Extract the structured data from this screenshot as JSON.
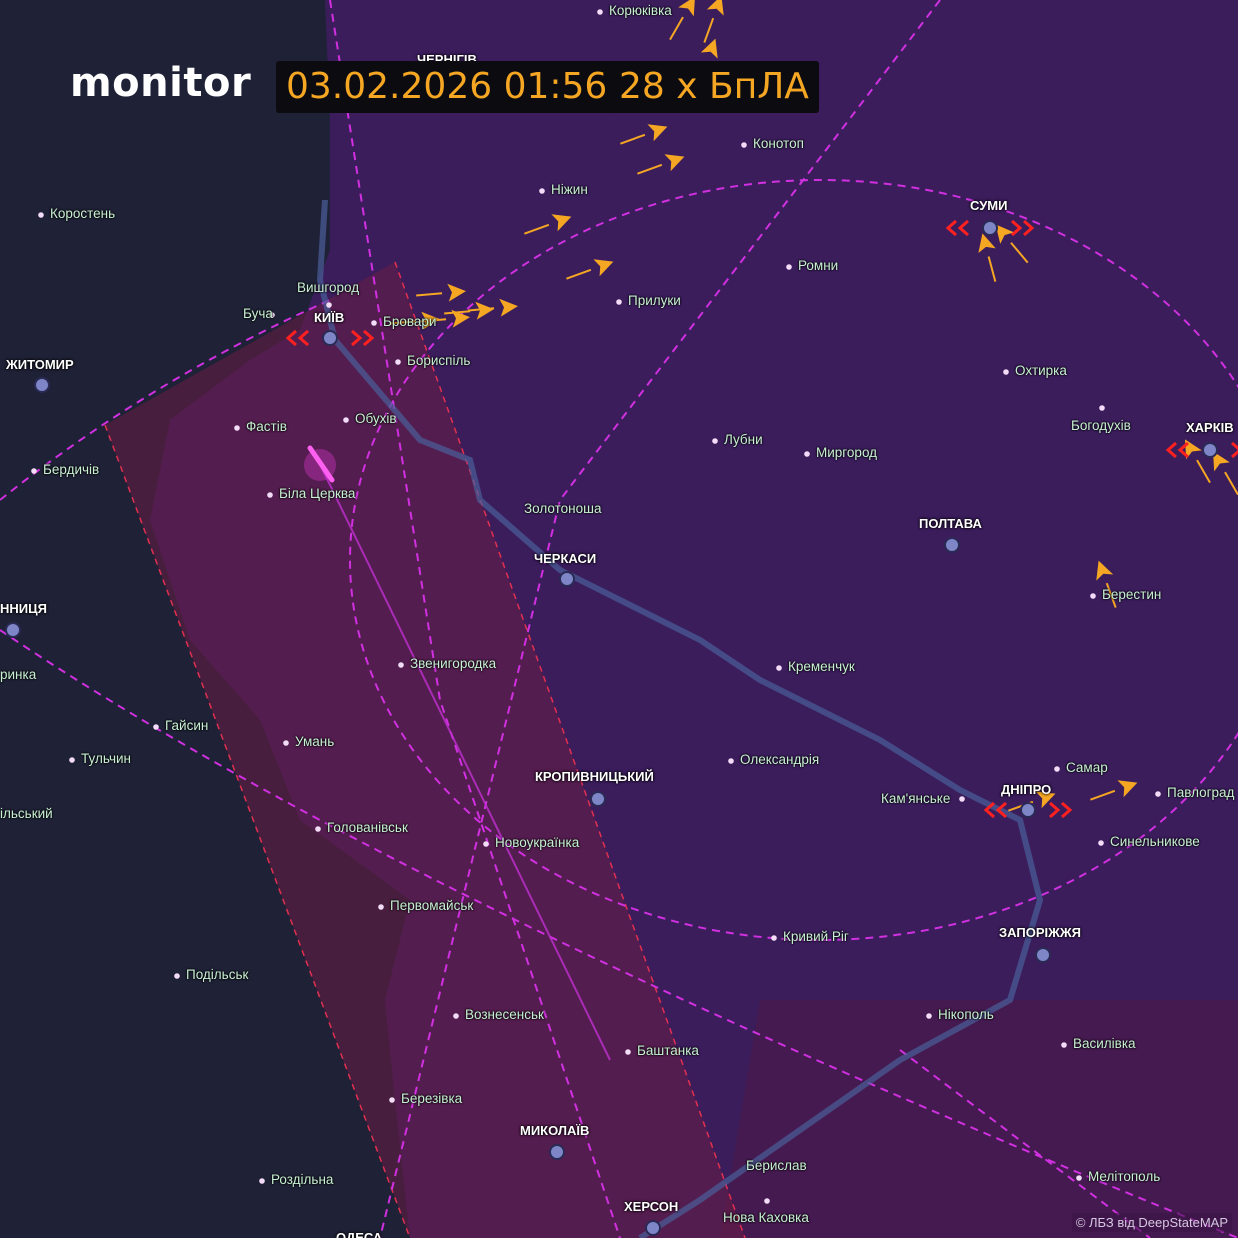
{
  "header": {
    "logo": "monitor",
    "datetime": "03.02.2026 01:56",
    "threat_count": "28 х БпЛА"
  },
  "attribution": "© ЛБЗ від DeepStateMAP",
  "colors": {
    "background": "#1f2136",
    "alert_region": "#3b1d5c",
    "missile_corridor": "#5a1e48",
    "drone": "#f5a623",
    "missile": "#ff3cf0",
    "threat_marker": "#ff2020"
  },
  "regional_centers": [
    "ЧЕРНІГІВ",
    "КИЇВ",
    "ЖИТОМИР",
    "СУМИ",
    "ХАРКІВ",
    "ПОЛТАВА",
    "ЧЕРКАСИ",
    "КРОПИВНИЦЬКИЙ",
    "ДНІПРО",
    "ЗАПОРІЖЖЯ",
    "МИКОЛАЇВ",
    "ХЕРСОН",
    "ННИЦЯ",
    "ОДЕСА"
  ],
  "towns": [
    "Корюківка",
    "Конотоп",
    "Ніжин",
    "Коростень",
    "Ромни",
    "Прилуки",
    "Вишгород",
    "Буча",
    "Бровари",
    "Бориспіль",
    "Охтирка",
    "Фастів",
    "Обухів",
    "Лубни",
    "Миргород",
    "Богодухів",
    "Бердичів",
    "Біла Церква",
    "Золотоноша",
    "Берестин",
    "Звенигородка",
    "Кременчук",
    "Гайсин",
    "Умань",
    "Тульчин",
    "Олександрія",
    "Самар",
    "Кам'янське",
    "Павлоград",
    "Синельникове",
    "Голованівськ",
    "Новоукраїнка",
    "Первомайськ",
    "Кривий Ріг",
    "Подільськ",
    "Нікополь",
    "Вознесенськ",
    "Баштанка",
    "Василівка",
    "Березівка",
    "Берислав",
    "Нова Каховка",
    "Роздільна",
    "Мелітополь",
    "ринка",
    "ільський"
  ],
  "icons": {
    "drone": "shahed-drone-icon",
    "missile": "missile-icon",
    "city": "city-dot-icon",
    "threat": "red-chevron-threat-icon"
  }
}
